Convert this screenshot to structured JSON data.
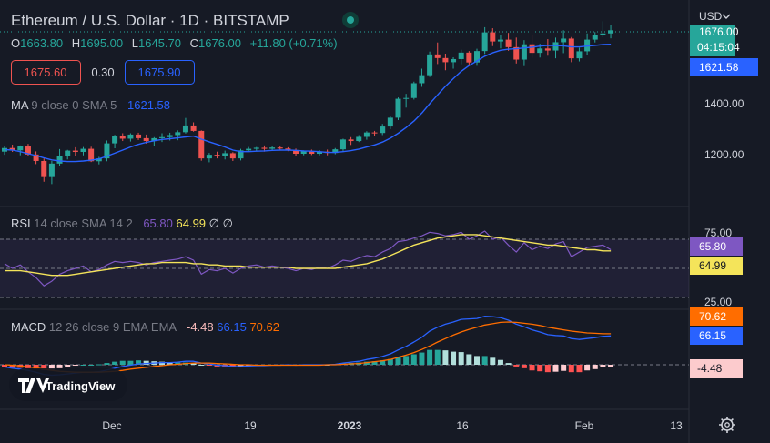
{
  "header": {
    "title": "Ethereum / U.S. Dollar · 1D · BITSTAMP",
    "ohlc": [
      {
        "k": "O",
        "v": "1663.80"
      },
      {
        "k": "H",
        "v": "1695.00"
      },
      {
        "k": "L",
        "v": "1645.70"
      },
      {
        "k": "C",
        "v": "1676.00"
      }
    ],
    "change": "+11.80 (+0.71%)",
    "bid": "1675.60",
    "spread": "0.30",
    "ask": "1675.90"
  },
  "axis": {
    "currency": "USD",
    "price_ticks": [
      "1400.00",
      "1200.00"
    ],
    "rsi_ticks": [
      "75.00",
      "25.00"
    ],
    "date_ticks": [
      "Dec",
      "19",
      "2023",
      "16",
      "Feb",
      "13"
    ]
  },
  "badges": {
    "last_price": "1676.00",
    "countdown": "04:15:04",
    "ma_value": "1621.58",
    "rsi_value": "65.80",
    "rsi_sma": "64.99",
    "macd_signal": "70.62",
    "macd_line": "66.15",
    "macd_hist": "-4.48"
  },
  "indicators": {
    "ma": {
      "name": "MA",
      "params": "9 close 0 SMA 5",
      "value": "1621.58"
    },
    "rsi": {
      "name": "RSI",
      "params": "14 close SMA 14 2",
      "v1": "65.80",
      "v2": "64.99",
      "v3": "∅",
      "v4": "∅"
    },
    "macd": {
      "name": "MACD",
      "params": "12 26 close 9 EMA EMA",
      "v1": "-4.48",
      "v2": "66.15",
      "v3": "70.62"
    }
  },
  "watermark": "TradingView",
  "colors": {
    "up": "#26a69a",
    "down": "#ef5350",
    "ma": "#2962ff",
    "rsi": "#7e57c2",
    "rsi_sma": "#f4e45a",
    "macd": "#2962ff",
    "signal": "#ff6d00",
    "bg": "#161a25"
  },
  "chart_data": [
    {
      "type": "candlestick",
      "title": "Ethereum / U.S. Dollar · 1D · BITSTAMP",
      "x_ticks": [
        "Dec",
        "19",
        "2023",
        "16",
        "Feb",
        "13"
      ],
      "y_ticks": [
        1200,
        1400
      ],
      "candles": [
        [
          1208,
          1231,
          1196,
          1222
        ],
        [
          1222,
          1235,
          1207,
          1213
        ],
        [
          1213,
          1232,
          1194,
          1228
        ],
        [
          1228,
          1238,
          1191,
          1197
        ],
        [
          1197,
          1209,
          1160,
          1172
        ],
        [
          1172,
          1182,
          1092,
          1110
        ],
        [
          1110,
          1172,
          1083,
          1162
        ],
        [
          1162,
          1218,
          1152,
          1191
        ],
        [
          1191,
          1215,
          1178,
          1212
        ],
        [
          1212,
          1225,
          1193,
          1207
        ],
        [
          1207,
          1226,
          1194,
          1219
        ],
        [
          1219,
          1227,
          1168,
          1171
        ],
        [
          1171,
          1188,
          1159,
          1182
        ],
        [
          1182,
          1251,
          1171,
          1240
        ],
        [
          1240,
          1273,
          1221,
          1268
        ],
        [
          1268,
          1279,
          1249,
          1258
        ],
        [
          1258,
          1279,
          1247,
          1274
        ],
        [
          1274,
          1281,
          1253,
          1260
        ],
        [
          1260,
          1274,
          1239,
          1249
        ],
        [
          1249,
          1264,
          1230,
          1260
        ],
        [
          1260,
          1279,
          1245,
          1264
        ],
        [
          1264,
          1281,
          1251,
          1272
        ],
        [
          1272,
          1290,
          1252,
          1283
        ],
        [
          1283,
          1338,
          1278,
          1309
        ],
        [
          1309,
          1321,
          1285,
          1288
        ],
        [
          1288,
          1290,
          1173,
          1182
        ],
        [
          1182,
          1203,
          1167,
          1196
        ],
        [
          1196,
          1208,
          1182,
          1192
        ],
        [
          1192,
          1212,
          1178,
          1202
        ],
        [
          1202,
          1206,
          1172,
          1182
        ],
        [
          1182,
          1219,
          1174,
          1213
        ],
        [
          1213,
          1226,
          1207,
          1219
        ],
        [
          1219,
          1226,
          1210,
          1223
        ],
        [
          1223,
          1232,
          1208,
          1219
        ],
        [
          1219,
          1228,
          1212,
          1224
        ],
        [
          1224,
          1230,
          1212,
          1220
        ],
        [
          1220,
          1225,
          1210,
          1214
        ],
        [
          1214,
          1220,
          1192,
          1200
        ],
        [
          1200,
          1213,
          1194,
          1210
        ],
        [
          1210,
          1216,
          1195,
          1200
        ],
        [
          1200,
          1214,
          1194,
          1208
        ],
        [
          1208,
          1216,
          1194,
          1203
        ],
        [
          1203,
          1222,
          1198,
          1217
        ],
        [
          1217,
          1258,
          1211,
          1255
        ],
        [
          1255,
          1264,
          1234,
          1249
        ],
        [
          1249,
          1272,
          1245,
          1265
        ],
        [
          1265,
          1287,
          1254,
          1282
        ],
        [
          1282,
          1288,
          1267,
          1280
        ],
        [
          1280,
          1315,
          1272,
          1305
        ],
        [
          1305,
          1347,
          1295,
          1339
        ],
        [
          1339,
          1417,
          1330,
          1412
        ],
        [
          1412,
          1431,
          1378,
          1415
        ],
        [
          1415,
          1478,
          1409,
          1472
        ],
        [
          1472,
          1528,
          1458,
          1503
        ],
        [
          1503,
          1594,
          1496,
          1583
        ],
        [
          1583,
          1629,
          1546,
          1569
        ],
        [
          1569,
          1586,
          1522,
          1553
        ],
        [
          1553,
          1572,
          1528,
          1565
        ],
        [
          1565,
          1601,
          1545,
          1590
        ],
        [
          1590,
          1596,
          1541,
          1552
        ],
        [
          1552,
          1605,
          1539,
          1596
        ],
        [
          1596,
          1688,
          1585,
          1668
        ],
        [
          1668,
          1684,
          1615,
          1633
        ],
        [
          1633,
          1658,
          1606,
          1640
        ],
        [
          1640,
          1666,
          1597,
          1611
        ],
        [
          1611,
          1648,
          1548,
          1563
        ],
        [
          1563,
          1638,
          1538,
          1622
        ],
        [
          1622,
          1658,
          1570,
          1589
        ],
        [
          1589,
          1624,
          1571,
          1606
        ],
        [
          1606,
          1642,
          1578,
          1598
        ],
        [
          1598,
          1648,
          1568,
          1630
        ],
        [
          1630,
          1676,
          1588,
          1644
        ],
        [
          1644,
          1650,
          1553,
          1568
        ],
        [
          1568,
          1609,
          1556,
          1595
        ],
        [
          1595,
          1664,
          1579,
          1640
        ],
        [
          1640,
          1669,
          1629,
          1659
        ],
        [
          1659,
          1711,
          1649,
          1664
        ],
        [
          1664,
          1695,
          1645,
          1676
        ]
      ],
      "ma": [
        1216,
        1214,
        1208,
        1200,
        1193,
        1184,
        1176,
        1172,
        1170,
        1170,
        1172,
        1175,
        1180,
        1191,
        1202,
        1214,
        1226,
        1236,
        1244,
        1250,
        1255,
        1258,
        1261,
        1265,
        1268,
        1256,
        1246,
        1236,
        1226,
        1214,
        1208,
        1208,
        1210,
        1211,
        1213,
        1214,
        1214,
        1213,
        1211,
        1210,
        1208,
        1205,
        1205,
        1208,
        1212,
        1218,
        1226,
        1234,
        1245,
        1260,
        1279,
        1301,
        1326,
        1357,
        1393,
        1427,
        1460,
        1490,
        1518,
        1540,
        1558,
        1576,
        1589,
        1599,
        1603,
        1605,
        1608,
        1611,
        1615,
        1618,
        1617,
        1616,
        1612,
        1612,
        1615,
        1618,
        1621,
        1622
      ]
    },
    {
      "type": "line",
      "title": "RSI 14 close SMA 14 2",
      "y_ticks": [
        25,
        75
      ],
      "series": [
        {
          "name": "RSI",
          "values": [
            54,
            50,
            53,
            47,
            42,
            35,
            39,
            45,
            48,
            50,
            52,
            47,
            49,
            53,
            56,
            55,
            56,
            55,
            53,
            55,
            56,
            57,
            58,
            60,
            57,
            45,
            49,
            48,
            50,
            46,
            50,
            52,
            53,
            51,
            52,
            51,
            50,
            48,
            50,
            49,
            51,
            50,
            53,
            57,
            56,
            59,
            61,
            60,
            64,
            67,
            73,
            74,
            76,
            78,
            81,
            80,
            78,
            79,
            81,
            75,
            78,
            82,
            75,
            77,
            70,
            64,
            72,
            66,
            69,
            67,
            71,
            73,
            60,
            64,
            68,
            69,
            70,
            66
          ]
        },
        {
          "name": "SMA",
          "values": [
            48,
            48,
            48,
            47,
            46,
            45,
            44,
            44,
            44,
            45,
            46,
            47,
            48,
            49,
            50,
            51,
            52,
            53,
            54,
            54,
            55,
            55,
            55,
            55,
            54,
            54,
            53,
            53,
            52,
            52,
            52,
            51,
            51,
            51,
            51,
            51,
            51,
            50,
            50,
            50,
            50,
            50,
            50,
            51,
            52,
            53,
            54,
            56,
            58,
            61,
            64,
            67,
            70,
            72,
            74,
            76,
            77,
            78,
            79,
            79,
            79,
            78,
            77,
            76,
            75,
            74,
            73,
            72,
            71,
            70,
            70,
            69,
            68,
            67,
            66,
            66,
            65,
            65
          ]
        }
      ]
    },
    {
      "type": "bar",
      "title": "MACD 12 26 close 9 EMA EMA",
      "series": [
        {
          "name": "MACD",
          "values": [
            -5,
            -8,
            -10,
            -13,
            -17,
            -22,
            -24,
            -23,
            -21,
            -19,
            -17,
            -17,
            -16,
            -12,
            -8,
            -4,
            -1,
            2,
            3,
            4,
            5,
            5,
            6,
            8,
            8,
            4,
            2,
            -1,
            -2,
            -4,
            -4,
            -3,
            -2,
            -2,
            -1,
            -1,
            0,
            -1,
            0,
            0,
            0,
            0,
            1,
            4,
            6,
            8,
            12,
            15,
            19,
            25,
            34,
            42,
            52,
            63,
            77,
            86,
            93,
            98,
            104,
            105,
            106,
            111,
            110,
            108,
            102,
            93,
            87,
            80,
            75,
            69,
            67,
            66,
            60,
            58,
            60,
            62,
            65,
            66
          ]
        },
        {
          "name": "Signal",
          "values": [
            0,
            -1,
            -3,
            -5,
            -7,
            -10,
            -13,
            -15,
            -16,
            -17,
            -17,
            -17,
            -17,
            -16,
            -15,
            -13,
            -10,
            -8,
            -6,
            -4,
            -2,
            0,
            1,
            3,
            4,
            4,
            4,
            3,
            2,
            1,
            0,
            0,
            -1,
            -1,
            -1,
            -1,
            -1,
            -1,
            -1,
            -1,
            -1,
            0,
            0,
            1,
            2,
            3,
            5,
            7,
            9,
            12,
            17,
            22,
            28,
            35,
            43,
            52,
            60,
            68,
            75,
            81,
            86,
            91,
            94,
            97,
            98,
            97,
            95,
            93,
            90,
            86,
            83,
            80,
            77,
            75,
            73,
            72,
            71,
            71
          ]
        }
      ]
    }
  ]
}
